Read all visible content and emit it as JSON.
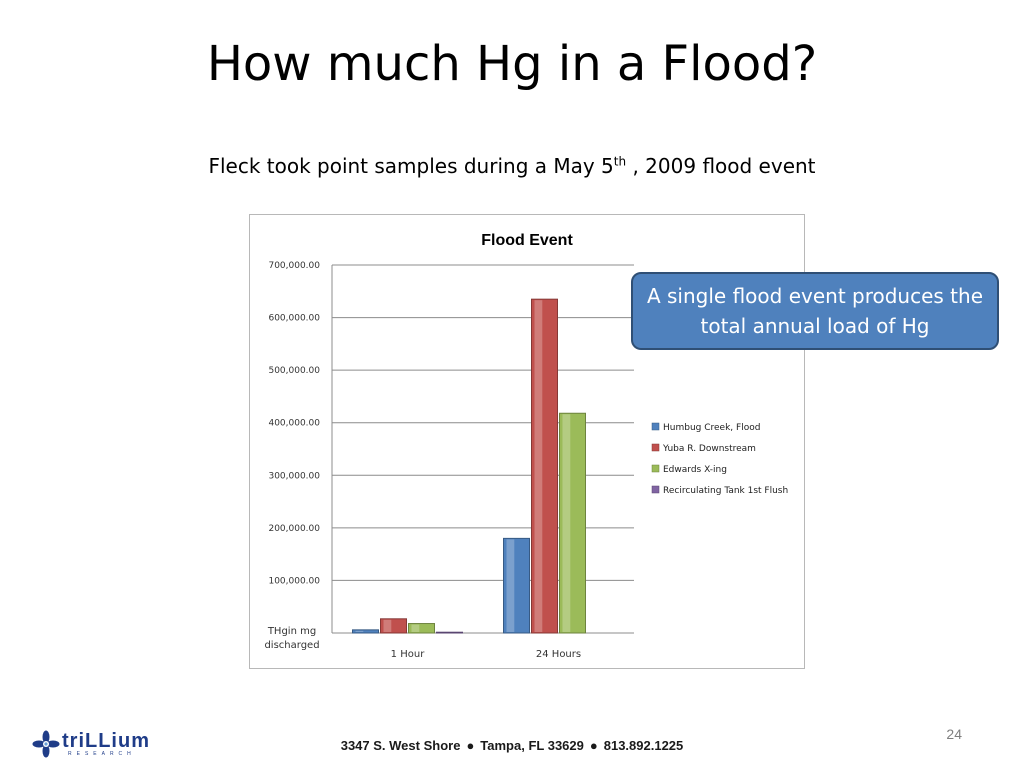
{
  "slide": {
    "title": "How much Hg in a Flood?",
    "subtitle_before": "Fleck took point samples during a May 5",
    "subtitle_sup": "th",
    "subtitle_after": " , 2009 flood event",
    "callout": "A single flood event produces the total annual load of Hg",
    "page_number": "24",
    "footer": {
      "address": "3347 S. West Shore",
      "city": "Tampa, FL  33629",
      "phone": "813.892.1225",
      "separator": "●"
    },
    "logo": {
      "name": "triLLium",
      "sub": "RESEARCH",
      "icon": "trillium-flower-icon"
    }
  },
  "chart_data": {
    "type": "bar",
    "title": "Flood Event",
    "xlabel": "",
    "ylabel": "THg in mg discharged",
    "categories": [
      "1 Hour",
      "24 Hours"
    ],
    "series": [
      {
        "name": "Humbug Creek, Flood",
        "color": "#4f81bd",
        "values": [
          6000,
          180000
        ]
      },
      {
        "name": "Yuba R. Downstream",
        "color": "#c0504d",
        "values": [
          27000,
          635000
        ]
      },
      {
        "name": "Edwards X-ing",
        "color": "#9bbb59",
        "values": [
          18000,
          418000
        ]
      },
      {
        "name": "Recirculating Tank 1st Flush",
        "color": "#8064a2",
        "values": [
          1500,
          0
        ]
      }
    ],
    "ylim": [
      0,
      700000
    ],
    "yticks": [
      "700,000.00",
      "600,000.00",
      "500,000.00",
      "400,000.00",
      "300,000.00",
      "200,000.00",
      "100,000.00"
    ],
    "yticks_values": [
      700000,
      600000,
      500000,
      400000,
      300000,
      200000,
      100000
    ],
    "grid": true,
    "legend_position": "right"
  }
}
